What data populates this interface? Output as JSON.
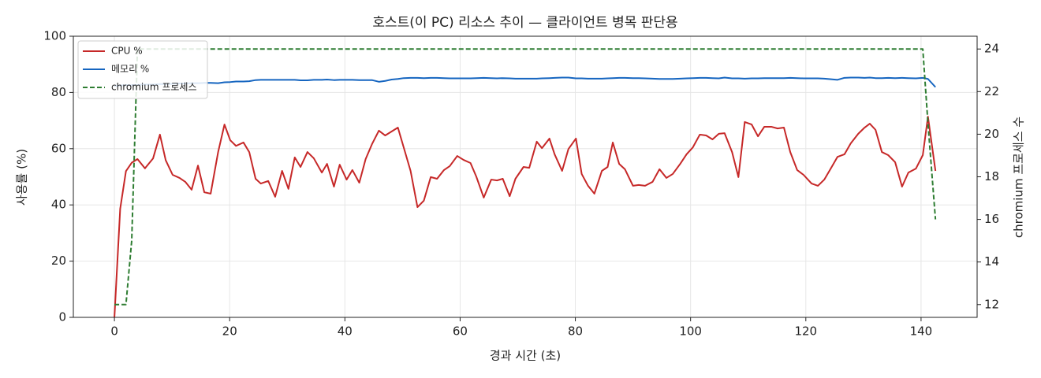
{
  "chart_data": {
    "type": "line",
    "title": "호스트(이 PC) 리소스 추이 — 클라이언트 병목 판단용",
    "xlabel": "경과 시간 (초)",
    "ylabel": "사용률 (%)",
    "y2label": "chromium 프로세스 수",
    "x": [
      0,
      1,
      2,
      3,
      4,
      5.3,
      6.7,
      7.9,
      8.9,
      10.1,
      11.3,
      12.3,
      13.4,
      14.5,
      15.6,
      16.7,
      18,
      19.1,
      20.1,
      21.1,
      22.4,
      23.4,
      24.5,
      25.4,
      26.7,
      27.9,
      29.1,
      30.2,
      31.3,
      32.3,
      33.5,
      34.6,
      36,
      36.9,
      38.1,
      39.1,
      40.3,
      41.3,
      42.5,
      43.6,
      44.7,
      45.9,
      47,
      48.1,
      49.2,
      50.2,
      51.4,
      52.6,
      53.7,
      54.9,
      56,
      57.2,
      58.2,
      59.5,
      60.6,
      61.8,
      62.8,
      64.1,
      65.4,
      66.4,
      67.4,
      68.6,
      69.6,
      71,
      72,
      73.3,
      74.2,
      75.5,
      76.4,
      77.7,
      78.8,
      80.1,
      81.1,
      82.2,
      83.3,
      84.6,
      85.6,
      86.5,
      87.6,
      88.6,
      90,
      91,
      92.1,
      93.4,
      94.6,
      95.8,
      96.9,
      98.2,
      99.3,
      100.4,
      101.6,
      102.7,
      103.8,
      104.9,
      105.9,
      107.2,
      108.3,
      109.4,
      110.6,
      111.7,
      112.8,
      114,
      115.1,
      116.2,
      117.3,
      118.5,
      119.6,
      121,
      122.1,
      123.2,
      124.4,
      125.5,
      126.7,
      127.8,
      129.1,
      130.2,
      131.1,
      132.1,
      133.2,
      134.3,
      135.5,
      136.7,
      137.8,
      139.1,
      140.3,
      141.2,
      142.5
    ],
    "series": [
      {
        "name": "CPU %",
        "color": "#c62828",
        "values": [
          0,
          38.6,
          52,
          55,
          56.3,
          53,
          56.5,
          65,
          55.9,
          50.7,
          49.6,
          48.2,
          45.4,
          54,
          44.5,
          44,
          58.8,
          68.6,
          63,
          61,
          62.2,
          58.8,
          49.3,
          47.6,
          48.5,
          42.9,
          52.1,
          45.7,
          56.9,
          53.5,
          58.8,
          56.6,
          51.5,
          54.6,
          46.5,
          54.3,
          49,
          52.4,
          47.9,
          56.3,
          61.6,
          66.4,
          64.7,
          66.1,
          67.5,
          60.5,
          52.1,
          39.2,
          41.5,
          49.9,
          49.3,
          52.4,
          53.8,
          57.4,
          56,
          54.9,
          50.1,
          42.6,
          49,
          48.7,
          49.3,
          43.1,
          49.3,
          53.5,
          53.2,
          62.5,
          60.2,
          63.6,
          58,
          52.1,
          59.9,
          63.6,
          51,
          46.8,
          44,
          52.1,
          53.5,
          62.2,
          54.6,
          52.7,
          46.8,
          47.1,
          46.8,
          48.2,
          52.7,
          49.6,
          51,
          54.6,
          58,
          60.5,
          65,
          64.7,
          63.3,
          65.3,
          65.5,
          58.8,
          49.9,
          69.5,
          68.6,
          64.4,
          67.8,
          67.8,
          67.2,
          67.5,
          58.8,
          52.4,
          50.7,
          47.6,
          46.8,
          49,
          53.2,
          57.1,
          58,
          61.9,
          65.3,
          67.5,
          68.9,
          66.7,
          58.8,
          57.7,
          55.2,
          46.5,
          51.5,
          52.9,
          57.7,
          71.4,
          52.1
        ]
      },
      {
        "name": "메모리 %",
        "color": "#1565c0",
        "values": [
          82.3,
          82.5,
          82.6,
          82.6,
          82.7,
          82.8,
          82.8,
          83,
          83,
          83.1,
          83.2,
          83.2,
          83.3,
          83.3,
          83.4,
          83.4,
          83.3,
          83.6,
          83.7,
          83.9,
          83.9,
          84,
          84.4,
          84.5,
          84.5,
          84.5,
          84.5,
          84.5,
          84.5,
          84.3,
          84.3,
          84.5,
          84.5,
          84.6,
          84.4,
          84.5,
          84.5,
          84.5,
          84.4,
          84.4,
          84.4,
          83.8,
          84.1,
          84.6,
          84.8,
          85.1,
          85.2,
          85.2,
          85.1,
          85.2,
          85.2,
          85.1,
          85,
          85,
          85,
          85,
          85.1,
          85.2,
          85.1,
          85,
          85.1,
          85,
          84.9,
          84.9,
          84.9,
          84.9,
          85,
          85.1,
          85.2,
          85.3,
          85.3,
          85,
          85,
          84.9,
          84.9,
          84.9,
          85,
          85.1,
          85.2,
          85.2,
          85.1,
          85.1,
          85,
          84.9,
          84.8,
          84.8,
          84.8,
          84.9,
          85,
          85.1,
          85.2,
          85.2,
          85.1,
          85,
          85.3,
          85,
          85,
          84.9,
          85,
          85,
          85.1,
          85.1,
          85.1,
          85.1,
          85.2,
          85.1,
          85,
          85,
          85,
          84.9,
          84.7,
          84.5,
          85.2,
          85.3,
          85.3,
          85.2,
          85.3,
          85.1,
          85.1,
          85.2,
          85.1,
          85.2,
          85.1,
          85,
          85.2,
          84.8,
          81.9
        ]
      },
      {
        "name": "chromium 프로세스",
        "color": "#2e7d32",
        "axis": "y2",
        "dashed": true,
        "values": [
          12,
          12,
          12,
          15,
          24,
          24,
          24,
          24,
          24,
          24,
          24,
          24,
          24,
          24,
          24,
          24,
          24,
          24,
          24,
          24,
          24,
          24,
          24,
          24,
          24,
          24,
          24,
          24,
          24,
          24,
          24,
          24,
          24,
          24,
          24,
          24,
          24,
          24,
          24,
          24,
          24,
          24,
          24,
          24,
          24,
          24,
          24,
          24,
          24,
          24,
          24,
          24,
          24,
          24,
          24,
          24,
          24,
          24,
          24,
          24,
          24,
          24,
          24,
          24,
          24,
          24,
          24,
          24,
          24,
          24,
          24,
          24,
          24,
          24,
          24,
          24,
          24,
          24,
          24,
          24,
          24,
          24,
          24,
          24,
          24,
          24,
          24,
          24,
          24,
          24,
          24,
          24,
          24,
          24,
          24,
          24,
          24,
          24,
          24,
          24,
          24,
          24,
          24,
          24,
          24,
          24,
          24,
          24,
          24,
          24,
          24,
          24,
          24,
          24,
          24,
          24,
          24,
          24,
          24,
          24,
          24,
          24,
          24,
          24,
          24,
          20.5,
          16
        ]
      }
    ],
    "xlim": [
      -7.13,
      149.73
    ],
    "xticks": [
      0,
      20,
      40,
      60,
      80,
      100,
      120,
      140
    ],
    "ylim": [
      0,
      100
    ],
    "yticks": [
      0,
      20,
      40,
      60,
      80,
      100
    ],
    "y2lim": [
      11.4,
      24.6
    ],
    "y2ticks": [
      12,
      14,
      16,
      18,
      20,
      22,
      24
    ],
    "grid": true,
    "legend": "upper left"
  }
}
